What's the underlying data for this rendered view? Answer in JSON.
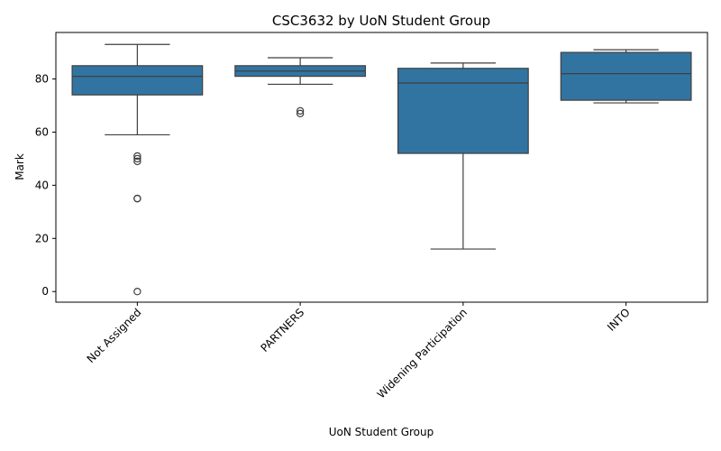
{
  "chart_data": {
    "type": "box",
    "title": "CSC3632 by UoN Student Group",
    "xlabel": "UoN Student Group",
    "ylabel": "Mark",
    "ylim": [
      -4,
      97.5
    ],
    "yticks": [
      0,
      20,
      40,
      60,
      80
    ],
    "categories": [
      "Not Assigned",
      "PARTNERS",
      "Widening Participation",
      "INTO"
    ],
    "boxes": [
      {
        "category": "Not Assigned",
        "whisker_low": 59,
        "q1": 74,
        "median": 81,
        "q3": 85,
        "whisker_high": 93,
        "outliers": [
          51,
          50,
          49,
          35,
          35,
          0
        ]
      },
      {
        "category": "PARTNERS",
        "whisker_low": 78,
        "q1": 81,
        "median": 83,
        "q3": 85,
        "whisker_high": 88,
        "outliers": [
          68,
          67
        ]
      },
      {
        "category": "Widening Participation",
        "whisker_low": 16,
        "q1": 52,
        "median": 78.5,
        "q3": 84,
        "whisker_high": 86,
        "outliers": []
      },
      {
        "category": "INTO",
        "whisker_low": 71,
        "q1": 72,
        "median": 82,
        "q3": 90,
        "whisker_high": 91,
        "outliers": []
      }
    ],
    "box_color": "#3274a1",
    "grid": false,
    "legend": "none"
  }
}
